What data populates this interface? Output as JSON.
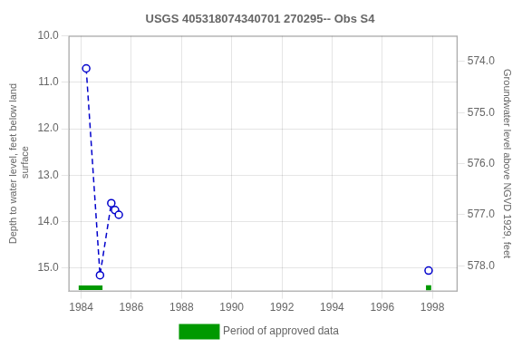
{
  "chart_data": {
    "type": "line",
    "title": "USGS 405318074340701 270295-- Obs S4",
    "ylabel": "Depth to water level, feet below land\n surface",
    "y2label": "Groundwater level above NGVD 1929, feet",
    "xlim": [
      1983.5,
      1999.0
    ],
    "xticks": [
      1984,
      1986,
      1988,
      1990,
      1992,
      1994,
      1996,
      1998
    ],
    "ylim": [
      15.5,
      10.0
    ],
    "yticks": [
      {
        "value": 10.0,
        "label": "10.0"
      },
      {
        "value": 11.0,
        "label": "11.0"
      },
      {
        "value": 12.0,
        "label": "12.0"
      },
      {
        "value": 13.0,
        "label": "13.0"
      },
      {
        "value": 14.0,
        "label": "14.0"
      },
      {
        "value": 15.0,
        "label": "15.0"
      }
    ],
    "y2lim": [
      578.5,
      573.5
    ],
    "y2ticks": [
      {
        "value": 578.0,
        "label": "578.0"
      },
      {
        "value": 577.0,
        "label": "577.0"
      },
      {
        "value": 576.0,
        "label": "576.0"
      },
      {
        "value": 575.0,
        "label": "575.0"
      },
      {
        "value": 574.0,
        "label": "574.0"
      }
    ],
    "grid": true,
    "legend": "bottom",
    "series": [
      {
        "type": "line",
        "line_style": "dashed",
        "marker": "circle",
        "color": "#0000cc",
        "x": [
          1984.2,
          1984.75,
          1985.2,
          1985.35,
          1985.5
        ],
        "values": [
          10.7,
          15.15,
          13.6,
          13.75,
          13.85
        ]
      },
      {
        "type": "scatter",
        "marker": "circle",
        "color": "#0000cc",
        "x": [
          1997.85
        ],
        "values": [
          15.05
        ]
      },
      {
        "name": "Period of approved data",
        "type": "line",
        "line_style": "solid",
        "color": "#009900",
        "x": [
          1983.9,
          1984.85
        ],
        "values": [
          15.42,
          15.42
        ]
      },
      {
        "type": "scatter",
        "marker": "square",
        "color": "#009900",
        "x": [
          1997.85
        ],
        "values": [
          15.42
        ]
      }
    ]
  }
}
